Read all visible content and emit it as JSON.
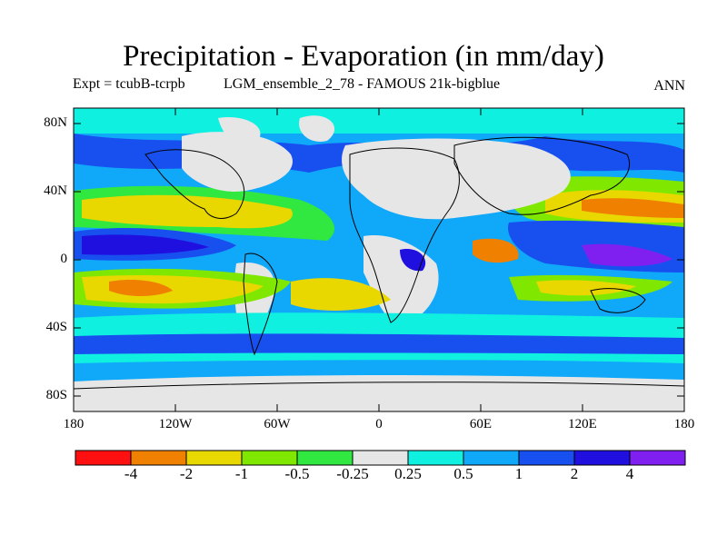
{
  "title": "Precipitation - Evaporation (in mm/day)",
  "experiment": "Expt = tcubB-tcrpb",
  "model": "LGM_ensemble_2_78 - FAMOUS 21k-bigblue",
  "season": "ANN",
  "latitude_ticks": [
    "80N",
    "40N",
    "0",
    "40S",
    "80S"
  ],
  "longitude_ticks": [
    "180",
    "120W",
    "60W",
    "0",
    "60E",
    "120E",
    "180"
  ],
  "colorbar": {
    "colors": [
      "#ff1010",
      "#f08000",
      "#e8d800",
      "#80e800",
      "#30e840",
      "#e6e6e6",
      "#10f0e0",
      "#10a8f8",
      "#1850f0",
      "#2010e0",
      "#8020f0"
    ],
    "labels": [
      "-4",
      "-2",
      "-1",
      "-0.5",
      "-0.25",
      "0.25",
      "0.5",
      "1",
      "2",
      "4"
    ]
  }
}
